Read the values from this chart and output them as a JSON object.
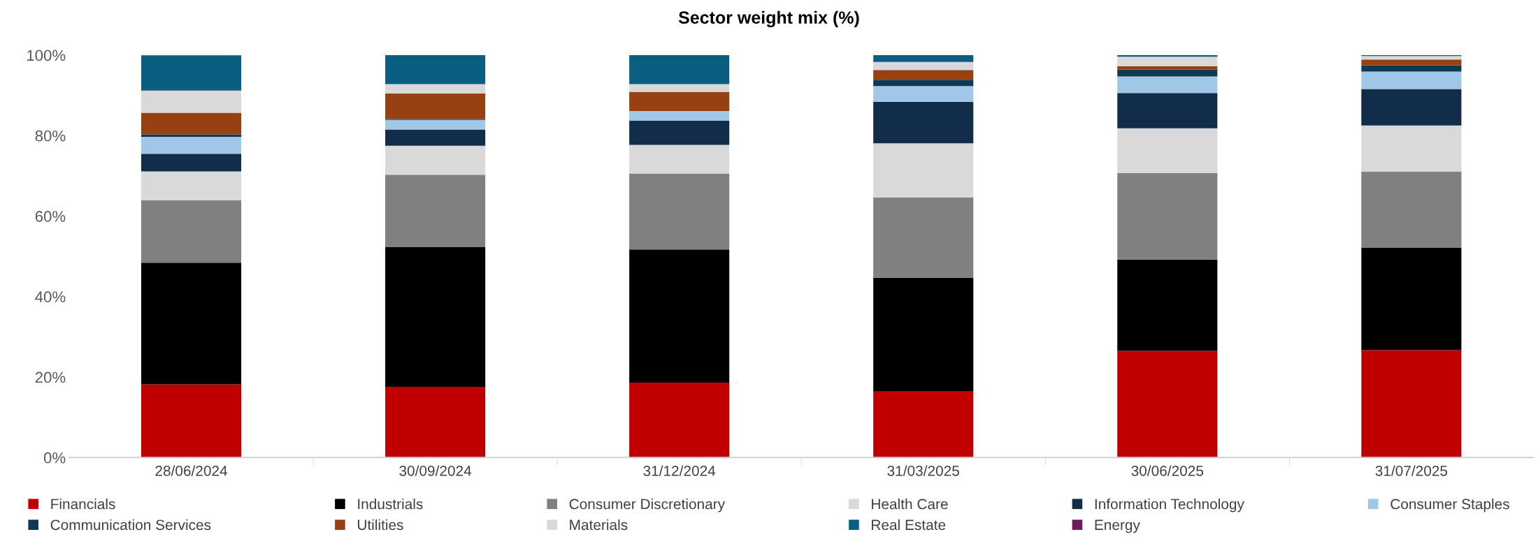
{
  "chart_data": {
    "type": "bar",
    "stacked": true,
    "title": "Sector weight mix (%)",
    "categories": [
      "28/06/2024",
      "30/09/2024",
      "31/12/2024",
      "31/03/2025",
      "30/06/2025",
      "31/07/2025"
    ],
    "ylim": [
      0,
      100
    ],
    "yticks": [
      {
        "value": 0,
        "label": "0%"
      },
      {
        "value": 20,
        "label": "20%"
      },
      {
        "value": 40,
        "label": "40%"
      },
      {
        "value": 60,
        "label": "60%"
      },
      {
        "value": 80,
        "label": "80%"
      },
      {
        "value": 100,
        "label": "100%"
      }
    ],
    "grid": false,
    "legend": "bottom",
    "series": [
      {
        "name": "Financials",
        "color": "#c00000",
        "values": [
          18.2,
          17.6,
          18.6,
          16.4,
          26.5,
          26.7
        ]
      },
      {
        "name": "Industrials",
        "color": "#000000",
        "values": [
          30.2,
          34.7,
          33.1,
          28.3,
          22.7,
          25.4
        ]
      },
      {
        "name": "Consumer Discretionary",
        "color": "#808080",
        "values": [
          15.5,
          18.0,
          18.9,
          19.9,
          21.5,
          18.9
        ]
      },
      {
        "name": "Health Care",
        "color": "#d9d9d9",
        "values": [
          7.2,
          7.2,
          7.1,
          13.5,
          11.1,
          11.5
        ]
      },
      {
        "name": "Information Technology",
        "color": "#112d4a",
        "values": [
          4.4,
          4.0,
          6.0,
          10.3,
          8.8,
          9.1
        ]
      },
      {
        "name": "Consumer Staples",
        "color": "#a0c6e8",
        "values": [
          4.2,
          2.4,
          2.4,
          3.9,
          4.1,
          4.3
        ]
      },
      {
        "name": "Communication Services",
        "color": "#0d3a52",
        "values": [
          0.6,
          0.2,
          0,
          1.6,
          1.7,
          1.6
        ]
      },
      {
        "name": "Utilities",
        "color": "#974012",
        "values": [
          5.4,
          6.4,
          4.8,
          2.4,
          0.8,
          1.4
        ]
      },
      {
        "name": "Materials",
        "color": "#d9d9d9",
        "values": [
          5.5,
          2.3,
          1.9,
          2.0,
          2.4,
          0.9
        ]
      },
      {
        "name": "Real Estate",
        "color": "#0a5e80",
        "values": [
          8.7,
          7.2,
          7.2,
          1.7,
          0.4,
          0.2
        ]
      },
      {
        "name": "Energy",
        "color": "#6b1a5e",
        "values": [
          0.1,
          0,
          0,
          0,
          0,
          0
        ]
      }
    ]
  }
}
